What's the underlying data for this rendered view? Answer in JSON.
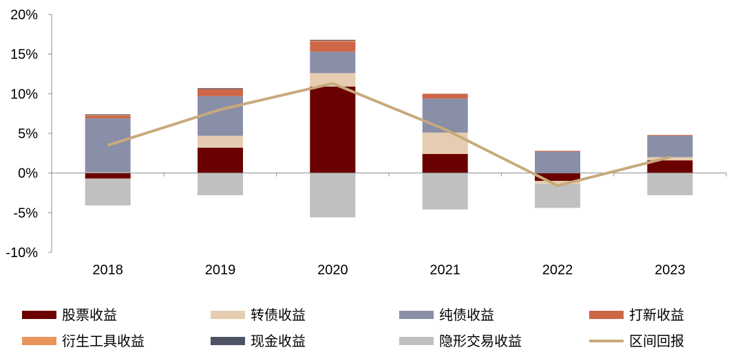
{
  "chart_data": {
    "type": "bar",
    "stacked": true,
    "categories": [
      "2018",
      "2019",
      "2020",
      "2021",
      "2022",
      "2023"
    ],
    "ylim": [
      -10,
      20
    ],
    "yticks": [
      -10,
      -5,
      0,
      5,
      10,
      15,
      20
    ],
    "yticklabels": [
      "-10%",
      "-5%",
      "0%",
      "5%",
      "10%",
      "15%",
      "20%"
    ],
    "grid": false,
    "legend_position": "bottom",
    "series": [
      {
        "name": "股票收益",
        "kind": "bar",
        "color": "#6b0000",
        "values": [
          -0.7,
          3.2,
          10.9,
          2.4,
          -1.0,
          1.6
        ]
      },
      {
        "name": "转债收益",
        "kind": "bar",
        "color": "#e6ccb0",
        "values": [
          0.1,
          1.5,
          1.7,
          2.7,
          -0.4,
          0.4
        ]
      },
      {
        "name": "纯债收益",
        "kind": "bar",
        "color": "#8a8fa8",
        "values": [
          6.8,
          5.0,
          2.7,
          4.3,
          2.7,
          2.7
        ]
      },
      {
        "name": "打新收益",
        "kind": "bar",
        "color": "#cc6647",
        "values": [
          0.3,
          0.9,
          1.3,
          0.6,
          0.1,
          0.1
        ]
      },
      {
        "name": "衍生工具收益",
        "kind": "bar",
        "color": "#e8945a",
        "values": [
          0.1,
          0.0,
          0.1,
          0.0,
          0.0,
          0.0
        ]
      },
      {
        "name": "现金收益",
        "kind": "bar",
        "color": "#4d5264",
        "values": [
          0.1,
          0.1,
          0.1,
          0.0,
          0.0,
          0.0
        ]
      },
      {
        "name": "隐形交易收益",
        "kind": "bar",
        "color": "#c0c0c0",
        "values": [
          -3.4,
          -2.8,
          -5.6,
          -4.6,
          -3.0,
          -2.8
        ]
      },
      {
        "name": "区间回报",
        "kind": "line",
        "color": "#c8a97c",
        "values": [
          3.5,
          8.0,
          11.3,
          5.5,
          -1.6,
          2.0
        ]
      }
    ]
  }
}
